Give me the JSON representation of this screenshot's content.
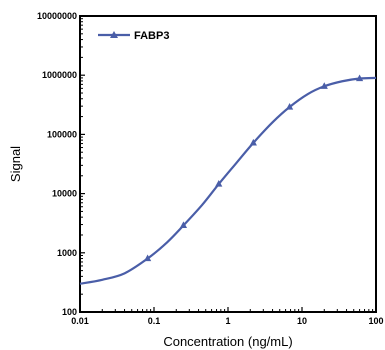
{
  "chart_data": {
    "type": "line",
    "xlabel": "Concentration (ng/mL)",
    "ylabel": "Signal",
    "xscale": "log",
    "yscale": "log",
    "xlim": [
      0.01,
      100
    ],
    "ylim": [
      100,
      10000000
    ],
    "xticks": [
      {
        "value": 0.01,
        "label": "0.01"
      },
      {
        "value": 0.1,
        "label": "0.1"
      },
      {
        "value": 1,
        "label": "1"
      },
      {
        "value": 10,
        "label": "10"
      },
      {
        "value": 100,
        "label": "100"
      }
    ],
    "yticks": [
      {
        "value": 100,
        "label": "100"
      },
      {
        "value": 1000,
        "label": "1000"
      },
      {
        "value": 10000,
        "label": "10000"
      },
      {
        "value": 100000,
        "label": "100000"
      },
      {
        "value": 1000000,
        "label": "1000000"
      },
      {
        "value": 10000000,
        "label": "10000000"
      }
    ],
    "grid": false,
    "legend_position": "top-left",
    "color": "#4a5ea8",
    "series": [
      {
        "name": "FABP3",
        "marker": "triangle",
        "points": [
          {
            "x": 0.082,
            "y": 800
          },
          {
            "x": 0.25,
            "y": 2900
          },
          {
            "x": 0.75,
            "y": 14500
          },
          {
            "x": 2.2,
            "y": 72000
          },
          {
            "x": 6.8,
            "y": 290000
          },
          {
            "x": 20,
            "y": 650000
          },
          {
            "x": 60,
            "y": 880000
          }
        ],
        "curve": [
          {
            "x": 0.01,
            "y": 300
          },
          {
            "x": 0.02,
            "y": 350
          },
          {
            "x": 0.04,
            "y": 450
          },
          {
            "x": 0.082,
            "y": 800
          },
          {
            "x": 0.15,
            "y": 1500
          },
          {
            "x": 0.25,
            "y": 2900
          },
          {
            "x": 0.45,
            "y": 6500
          },
          {
            "x": 0.75,
            "y": 14500
          },
          {
            "x": 1.3,
            "y": 33000
          },
          {
            "x": 2.2,
            "y": 72000
          },
          {
            "x": 4,
            "y": 160000
          },
          {
            "x": 6.8,
            "y": 290000
          },
          {
            "x": 12,
            "y": 480000
          },
          {
            "x": 20,
            "y": 650000
          },
          {
            "x": 35,
            "y": 790000
          },
          {
            "x": 60,
            "y": 880000
          },
          {
            "x": 100,
            "y": 900000
          }
        ]
      }
    ]
  }
}
